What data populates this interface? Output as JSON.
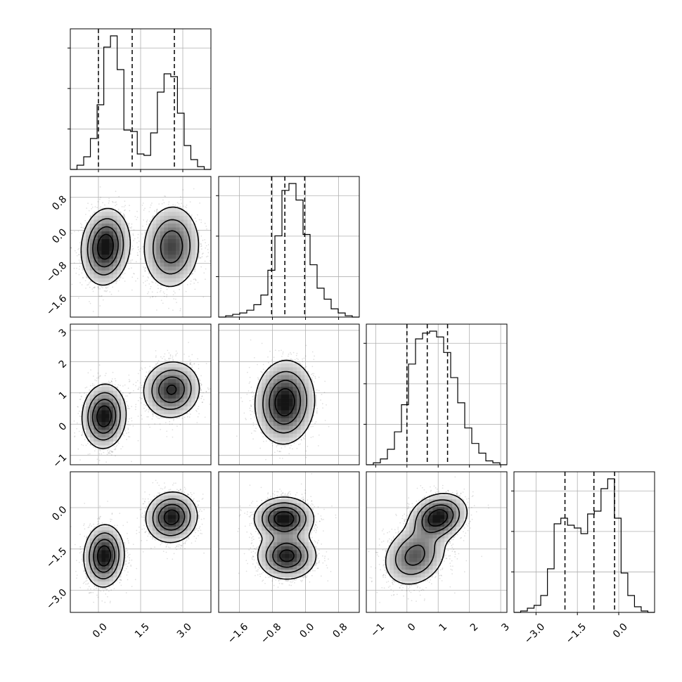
{
  "chart_data": {
    "type": "corner",
    "colors": {
      "ink": "#000000",
      "grid": "#b0b0b0",
      "scatter": "#000000",
      "density": "#000000"
    },
    "params": [
      {
        "range": [
          -1.0,
          4.0
        ],
        "ticks": [
          0.0,
          1.5,
          3.0
        ],
        "tick_labels": [
          "0.0",
          "1.5",
          "3.0"
        ]
      },
      {
        "range": [
          -2.1,
          1.3
        ],
        "ticks": [
          -1.6,
          -0.8,
          0.0,
          0.8
        ],
        "tick_labels": [
          "−1.6",
          "−0.8",
          "0.0",
          "0.8"
        ]
      },
      {
        "range": [
          -1.3,
          3.2
        ],
        "ticks": [
          -1,
          0,
          1,
          2,
          3
        ],
        "tick_labels": [
          "−1",
          "0",
          "1",
          "2",
          "3"
        ]
      },
      {
        "range": [
          -3.8,
          1.3
        ],
        "ticks": [
          -3.0,
          -1.5,
          0.0
        ],
        "tick_labels": [
          "−3.0",
          "−1.5",
          "0.0"
        ]
      }
    ],
    "histograms": [
      {
        "param": 0,
        "quantiles": [
          0.0,
          1.2,
          2.7
        ],
        "counts": [
          0,
          3,
          9,
          22,
          46,
          87,
          95,
          71,
          28,
          27,
          11,
          10,
          26,
          55,
          68,
          66,
          40,
          17,
          7,
          2,
          0
        ]
      },
      {
        "param": 1,
        "quantiles": [
          -0.82,
          -0.5,
          -0.02
        ],
        "counts": [
          0,
          1,
          2,
          3,
          5,
          9,
          16,
          34,
          59,
          92,
          97,
          85,
          60,
          38,
          21,
          13,
          6,
          3,
          1,
          0
        ]
      },
      {
        "param": 2,
        "quantiles": [
          0.0,
          0.65,
          1.3
        ],
        "counts": [
          0,
          1,
          3,
          8,
          17,
          31,
          52,
          65,
          68,
          69,
          66,
          58,
          45,
          32,
          19,
          11,
          6,
          2,
          1,
          0
        ]
      },
      {
        "param": 3,
        "quantiles": [
          -1.95,
          -0.9,
          -0.15
        ],
        "counts": [
          0,
          1,
          3,
          5,
          12,
          31,
          63,
          67,
          62,
          60,
          56,
          70,
          72,
          88,
          95,
          67,
          28,
          12,
          4,
          1,
          0
        ]
      }
    ],
    "scatter_panels": [
      {
        "x": 0,
        "y": 1,
        "clusters": [
          {
            "mu": [
              0.25,
              -0.4
            ],
            "sd": [
              0.42,
              0.45
            ],
            "rho": 0.1,
            "w": 1.0
          },
          {
            "mu": [
              2.6,
              -0.4
            ],
            "sd": [
              0.5,
              0.5
            ],
            "rho": 0.05,
            "w": 1.0
          }
        ]
      },
      {
        "x": 0,
        "y": 2,
        "clusters": [
          {
            "mu": [
              0.2,
              0.25
            ],
            "sd": [
              0.38,
              0.5
            ],
            "rho": 0.05,
            "w": 1.0
          },
          {
            "mu": [
              2.6,
              1.1
            ],
            "sd": [
              0.5,
              0.45
            ],
            "rho": 0.05,
            "w": 1.0
          }
        ]
      },
      {
        "x": 1,
        "y": 2,
        "clusters": [
          {
            "mu": [
              -0.5,
              0.7
            ],
            "sd": [
              0.35,
              0.65
            ],
            "rho": 0.05,
            "w": 1.0
          }
        ]
      },
      {
        "x": 0,
        "y": 3,
        "clusters": [
          {
            "mu": [
              0.2,
              -1.75
            ],
            "sd": [
              0.35,
              0.55
            ],
            "rho": 0.05,
            "w": 1.0
          },
          {
            "mu": [
              2.6,
              -0.35
            ],
            "sd": [
              0.45,
              0.45
            ],
            "rho": 0.05,
            "w": 1.0
          }
        ]
      },
      {
        "x": 1,
        "y": 3,
        "clusters": [
          {
            "mu": [
              -0.52,
              -0.4
            ],
            "sd": [
              0.35,
              0.38
            ],
            "rho": 0.0,
            "w": 1.0
          },
          {
            "mu": [
              -0.45,
              -1.75
            ],
            "sd": [
              0.35,
              0.42
            ],
            "rho": 0.0,
            "w": 1.0
          }
        ]
      },
      {
        "x": 2,
        "y": 3,
        "clusters": [
          {
            "mu": [
              0.25,
              -1.75
            ],
            "sd": [
              0.5,
              0.55
            ],
            "rho": 0.2,
            "w": 1.0
          },
          {
            "mu": [
              1.0,
              -0.35
            ],
            "sd": [
              0.45,
              0.42
            ],
            "rho": 0.2,
            "w": 1.0
          }
        ]
      }
    ]
  }
}
